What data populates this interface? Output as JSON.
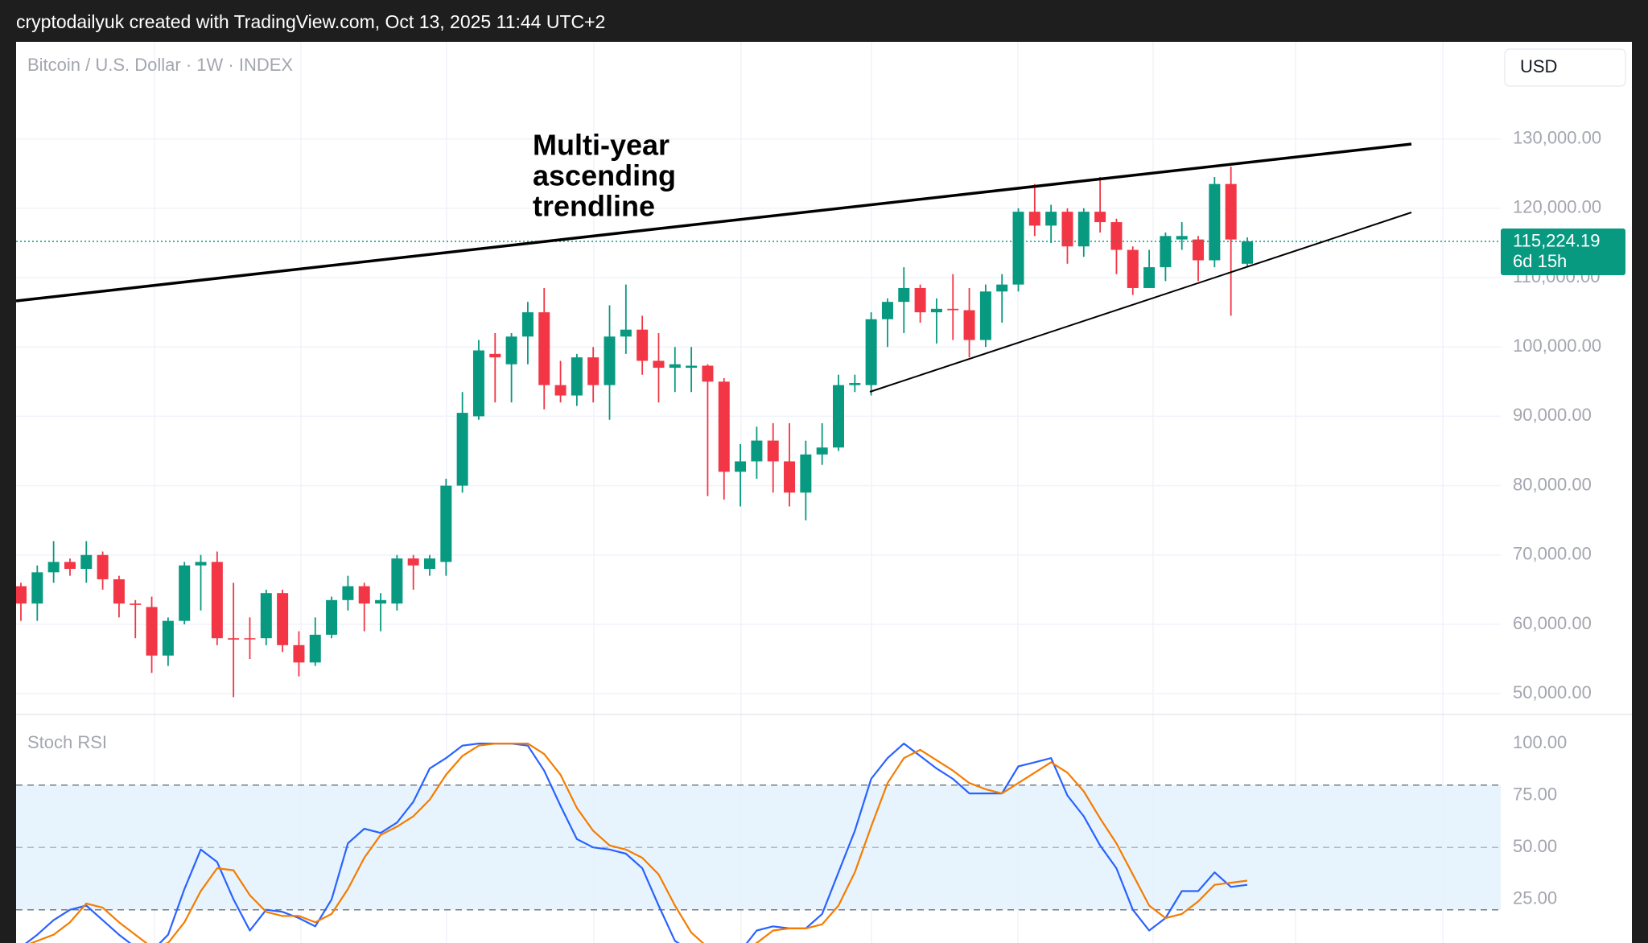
{
  "header": "cryptodailyuk created with TradingView.com, Oct 13, 2025 11:44 UTC+2",
  "currency": "USD",
  "chart_data": [
    {
      "type": "candlestick",
      "title": "Bitcoin / U.S. Dollar · 1W · INDEX",
      "annotation": [
        "Multi-year",
        "ascending",
        "trendline"
      ],
      "up_color": "#089981",
      "down_color": "#f23645",
      "open": [
        65500,
        63000,
        67500,
        69000,
        68000,
        70000,
        66500,
        63000,
        62500,
        55500,
        60500,
        68500,
        69000,
        58000,
        58000,
        58000,
        64500,
        57000,
        54500,
        58500,
        63500,
        65500,
        63000,
        63000,
        69500,
        68000,
        69000,
        80000,
        90000,
        99000,
        97500,
        101500,
        105000,
        94500,
        93000,
        98500,
        94500,
        101500,
        102500,
        98000,
        97000,
        97000,
        97300,
        95000,
        82000,
        83500,
        86500,
        83500,
        79000,
        84500,
        85500,
        94500,
        94500,
        104000,
        106500,
        108500,
        105000,
        105500,
        105300,
        101000,
        108000,
        109000,
        119500,
        117500,
        119500,
        114500,
        119500,
        118000,
        114000,
        108500,
        111500,
        115500,
        115500,
        112500,
        123500,
        112000
      ],
      "high": [
        66000,
        68500,
        72000,
        69500,
        72000,
        70500,
        67000,
        63500,
        64000,
        61000,
        69000,
        70000,
        70500,
        66000,
        61000,
        65000,
        65000,
        59000,
        61000,
        64000,
        67000,
        66000,
        64500,
        70000,
        70000,
        70000,
        81000,
        93500,
        101000,
        102000,
        102000,
        106500,
        108500,
        98000,
        99000,
        100000,
        106000,
        109000,
        104500,
        102000,
        100000,
        100000,
        97500,
        95500,
        86000,
        88500,
        89000,
        89000,
        86500,
        89000,
        96000,
        96000,
        105000,
        107000,
        111500,
        109000,
        107000,
        110500,
        108500,
        109000,
        110500,
        120000,
        123500,
        120500,
        120000,
        120000,
        124500,
        118500,
        114500,
        114000,
        116500,
        118000,
        116000,
        124500,
        126000,
        115800
      ],
      "low": [
        60500,
        60500,
        66000,
        67000,
        66000,
        65000,
        61000,
        58000,
        53000,
        54000,
        60000,
        62000,
        57000,
        49500,
        55000,
        57000,
        56000,
        52500,
        54000,
        58000,
        62000,
        59000,
        59000,
        62000,
        65000,
        67000,
        67000,
        79000,
        89500,
        92000,
        92000,
        97500,
        91000,
        92000,
        91500,
        92000,
        89500,
        99000,
        96000,
        92000,
        93500,
        93500,
        78500,
        78000,
        77000,
        81000,
        79000,
        77000,
        75000,
        83000,
        85000,
        93500,
        93000,
        100000,
        102000,
        103500,
        100500,
        101000,
        98500,
        100000,
        103500,
        108000,
        116000,
        115000,
        112000,
        113000,
        116500,
        110500,
        107500,
        108500,
        109500,
        114000,
        109500,
        111500,
        104500,
        111500
      ],
      "close": [
        63000,
        67500,
        69000,
        68000,
        70000,
        66500,
        63000,
        62800,
        55500,
        60500,
        68500,
        69000,
        58000,
        57800,
        57900,
        64500,
        57000,
        54500,
        58500,
        63500,
        65500,
        63000,
        63500,
        69500,
        68500,
        69500,
        80000,
        90500,
        99500,
        98500,
        101500,
        105000,
        94500,
        93000,
        98500,
        94500,
        101500,
        102500,
        98000,
        97000,
        97500,
        97300,
        95000,
        82000,
        83500,
        86500,
        83500,
        79000,
        84500,
        85500,
        94500,
        94800,
        104000,
        106500,
        108500,
        105000,
        105500,
        105300,
        101000,
        108000,
        109000,
        119500,
        117500,
        119500,
        114500,
        119500,
        118000,
        114000,
        108500,
        111500,
        116000,
        116000,
        112500,
        123500,
        115500,
        115224.19
      ],
      "last_price": {
        "value": 115224.19,
        "label": "115,224.19"
      },
      "countdown": "6d 15h",
      "ylim": [
        47000,
        144000
      ],
      "yticks": [
        {
          "value": 50000,
          "label": "50,000.00"
        },
        {
          "value": 60000,
          "label": "60,000.00"
        },
        {
          "value": 70000,
          "label": "70,000.00"
        },
        {
          "value": 80000,
          "label": "80,000.00"
        },
        {
          "value": 90000,
          "label": "90,000.00"
        },
        {
          "value": 100000,
          "label": "100,000.00"
        },
        {
          "value": 110000,
          "label": "110,000.00"
        },
        {
          "value": 120000,
          "label": "120,000.00"
        },
        {
          "value": 130000,
          "label": "130,000.00"
        }
      ],
      "grid": true
    },
    {
      "type": "line",
      "title": "Stoch RSI",
      "series": [
        {
          "color": "#2962ff",
          "values": [
            2,
            8,
            15,
            20,
            22,
            15,
            8,
            2,
            0,
            8,
            30,
            49,
            43,
            25,
            10,
            20,
            19,
            16,
            12,
            25,
            52,
            59,
            57,
            62,
            72,
            88,
            93,
            99,
            100,
            100,
            100,
            99,
            87,
            70,
            54,
            50,
            49,
            47,
            40,
            22,
            5,
            0,
            0,
            0,
            0,
            10,
            12,
            11,
            11,
            18,
            38,
            58,
            83,
            93,
            100,
            94,
            88,
            83,
            76,
            76,
            76,
            89,
            91,
            93,
            75,
            65,
            51,
            40,
            20,
            10,
            16,
            29,
            29,
            38,
            31,
            32
          ]
        },
        {
          "color": "#f57c00",
          "values": [
            2,
            5,
            8,
            14,
            23,
            21,
            14,
            8,
            2,
            4,
            14,
            29,
            40,
            39,
            27,
            19,
            17,
            17,
            14,
            18,
            30,
            45,
            56,
            60,
            65,
            73,
            85,
            94,
            99,
            100,
            100,
            100,
            95,
            85,
            69,
            58,
            51,
            49,
            45,
            37,
            22,
            9,
            2,
            0,
            0,
            4,
            10,
            11,
            11,
            13,
            22,
            38,
            60,
            81,
            93,
            97,
            92,
            87,
            81,
            78,
            76,
            81,
            86,
            91,
            86,
            77,
            64,
            52,
            37,
            22,
            16,
            18,
            24,
            32,
            33,
            34
          ]
        }
      ],
      "band_lines": [
        80,
        50,
        20
      ],
      "band_fill": "#e3f2fd",
      "ylim": [
        4,
        114
      ],
      "yticks": [
        {
          "value": 25,
          "label": "25.00"
        },
        {
          "value": 50,
          "label": "50.00"
        },
        {
          "value": 75,
          "label": "75.00"
        },
        {
          "value": 100,
          "label": "100.00"
        }
      ]
    }
  ]
}
